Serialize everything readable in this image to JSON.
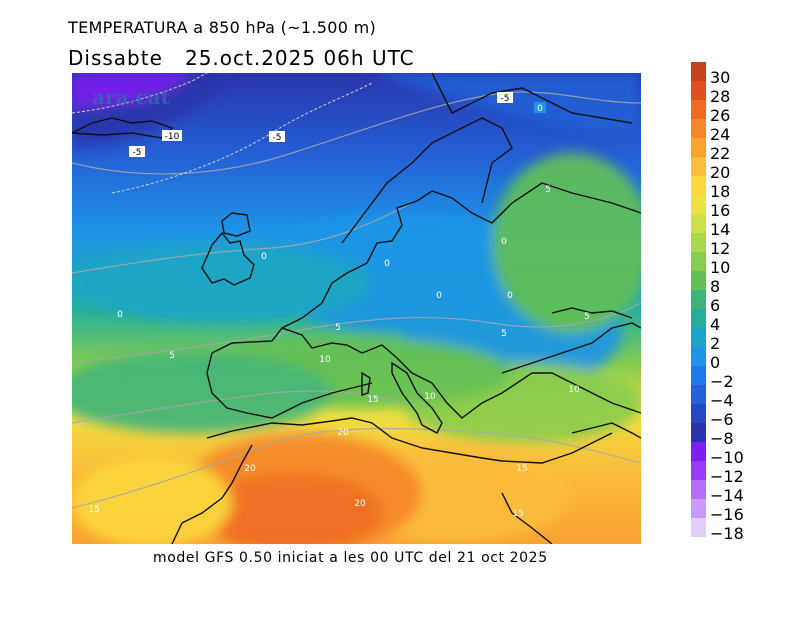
{
  "title_line1": "TEMPERATURA a 850 hPa (~1.500 m)",
  "title_line2": "Dissabte   25.oct.2025 06h UTC",
  "footer": "model GFS 0.50 iniciat a les 00 UTC del 21 oct 2025",
  "watermark": "ara.cat",
  "legend": [
    {
      "label": "30",
      "color": "#c8401e"
    },
    {
      "label": "28",
      "color": "#e04f20"
    },
    {
      "label": "26",
      "color": "#ee6a24"
    },
    {
      "label": "24",
      "color": "#f5872a"
    },
    {
      "label": "22",
      "color": "#f8a232"
    },
    {
      "label": "20",
      "color": "#fbbd3a"
    },
    {
      "label": "18",
      "color": "#fbd63e"
    },
    {
      "label": "16",
      "color": "#eee042"
    },
    {
      "label": "14",
      "color": "#cee14a"
    },
    {
      "label": "12",
      "color": "#a9d84c"
    },
    {
      "label": "10",
      "color": "#86cc4e"
    },
    {
      "label": "8",
      "color": "#62c055"
    },
    {
      "label": "6",
      "color": "#3fb47a"
    },
    {
      "label": "4",
      "color": "#23ae9e"
    },
    {
      "label": "2",
      "color": "#1aa6c6"
    },
    {
      "label": "0",
      "color": "#1e95e6"
    },
    {
      "label": "−2",
      "color": "#2079ea"
    },
    {
      "label": "−4",
      "color": "#2461d6"
    },
    {
      "label": "−6",
      "color": "#2549c0"
    },
    {
      "label": "−8",
      "color": "#2a35ac"
    },
    {
      "label": "−10",
      "color": "#7d1ff0"
    },
    {
      "label": "−12",
      "color": "#9a3cf6"
    },
    {
      "label": "−14",
      "color": "#b56ef8"
    },
    {
      "label": "−16",
      "color": "#cc9afa"
    },
    {
      "label": "−18",
      "color": "#e3cdfc"
    }
  ],
  "contour_labels": [
    "-5",
    "0",
    "-10",
    "-5",
    "-5",
    "5",
    "0",
    "0",
    "0",
    "0",
    "0",
    "5",
    "5",
    "0",
    "5",
    "10",
    "5",
    "10",
    "15",
    "10",
    "20",
    "20",
    "15",
    "20",
    "15",
    "15"
  ]
}
